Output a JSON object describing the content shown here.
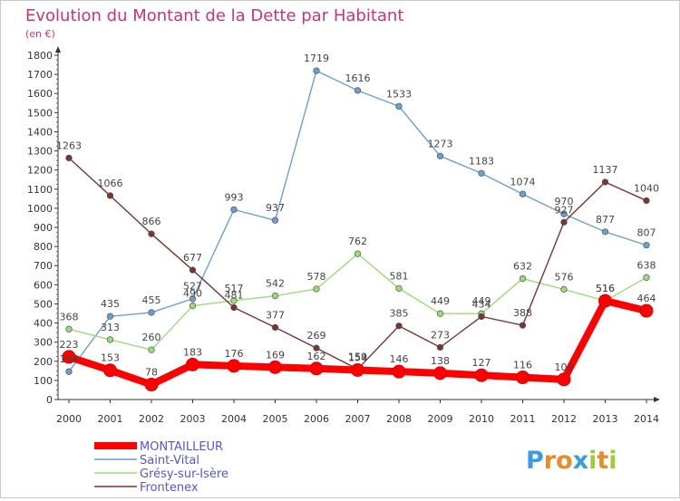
{
  "chart_data": {
    "type": "line",
    "title": "Evolution du Montant de la Dette par Habitant",
    "subtitle": "(en €)",
    "x": [
      "2000",
      "2001",
      "2002",
      "2003",
      "2004",
      "2005",
      "2006",
      "2007",
      "2008",
      "2009",
      "2010",
      "2011",
      "2012",
      "2013",
      "2014"
    ],
    "yticks": [
      "0",
      "100",
      "200",
      "300",
      "400",
      "500",
      "600",
      "700",
      "800",
      "900",
      "1000",
      "1100",
      "1200",
      "1300",
      "1400",
      "1500",
      "1600",
      "1700",
      "1800"
    ],
    "ylim": [
      0,
      1800
    ],
    "grid": false,
    "legend_position": "bottom-left",
    "series": [
      {
        "name": "MONTAILLEUR",
        "color": "#ff0000",
        "values": [
          223,
          153,
          78,
          183,
          176,
          169,
          162,
          154,
          146,
          138,
          127,
          116,
          105,
          516,
          464
        ],
        "labels": [
          "223",
          "153",
          "78",
          "183",
          "176",
          "169",
          "162",
          "154",
          "146",
          "138",
          "127",
          "116",
          "105",
          "516",
          "464"
        ]
      },
      {
        "name": "Saint-Vital",
        "color": "#6a9fd4",
        "values": [
          146,
          435,
          455,
          527,
          993,
          937,
          1719,
          1616,
          1533,
          1273,
          1183,
          1074,
          970,
          877,
          807
        ],
        "labels": [
          "146",
          "435",
          "455",
          "527",
          "993",
          "937",
          "1719",
          "1616",
          "1533",
          "1273",
          "1183",
          "1074",
          "970",
          "877",
          "807"
        ]
      },
      {
        "name": "Grésy-sur-Isère",
        "color": "#99dd77",
        "values": [
          368,
          313,
          260,
          490,
          517,
          542,
          578,
          762,
          581,
          449,
          449,
          632,
          576,
          516,
          638
        ],
        "labels": [
          "368",
          "313",
          "260",
          "490",
          "517",
          "542",
          "578",
          "762",
          "581",
          "449",
          "449",
          "632",
          "576",
          "516",
          "638"
        ]
      },
      {
        "name": "Frontenex",
        "color": "#7b3333",
        "values": [
          1263,
          1066,
          866,
          677,
          481,
          377,
          269,
          159,
          385,
          273,
          434,
          388,
          927,
          1137,
          1040
        ],
        "labels": [
          "1263",
          "1066",
          "866",
          "677",
          "481",
          "377",
          "269",
          "159",
          "385",
          "273",
          "434",
          "388",
          "927",
          "1137",
          "1040"
        ]
      }
    ]
  },
  "brand": {
    "letters": [
      "P",
      "r",
      "o",
      "x",
      "i",
      "t",
      "i"
    ],
    "colors": [
      "#3b9be0",
      "#e88b2a",
      "#e88b2a",
      "#3b9be0",
      "#9bcc3a",
      "#e88b2a",
      "#9bcc3a"
    ]
  },
  "colors": {
    "title": "#cc3377",
    "legend_text": "#5555dd",
    "axis": "#333333"
  }
}
